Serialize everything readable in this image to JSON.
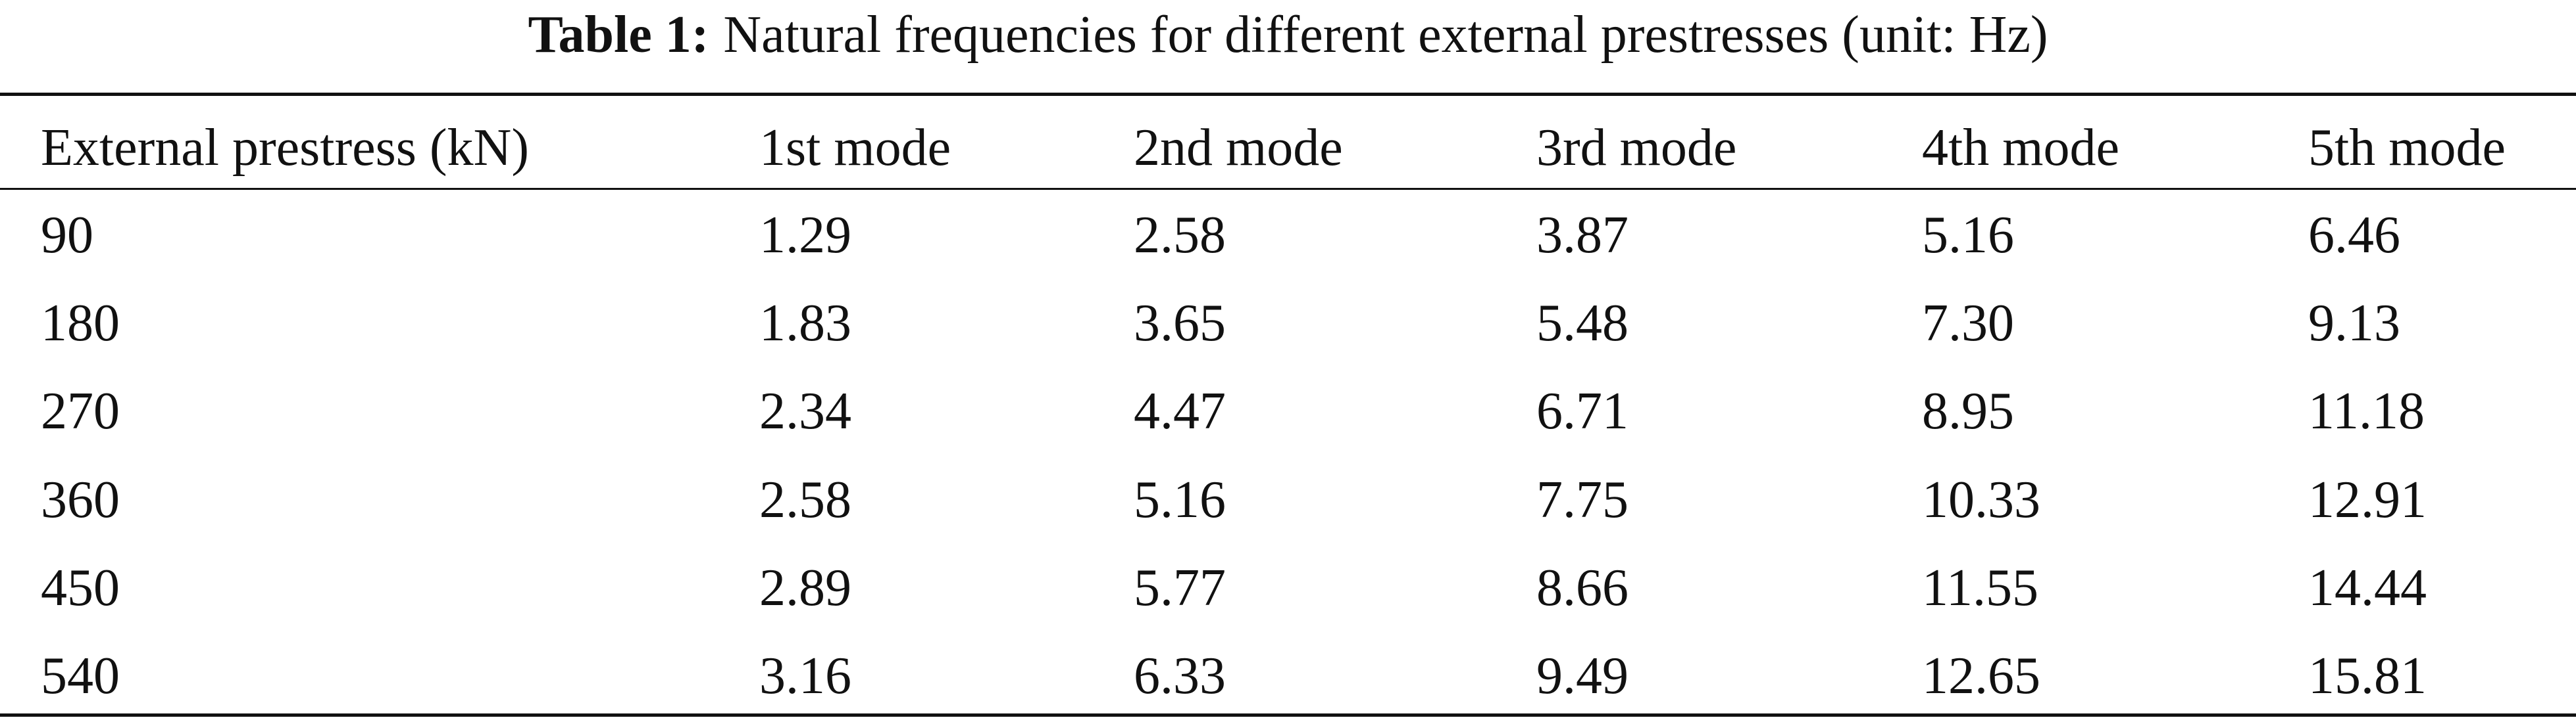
{
  "caption": {
    "label": "Table 1:",
    "text": "Natural frequencies for different external prestresses (unit: Hz)"
  },
  "table": {
    "header": [
      "External prestress (kN)",
      "1st mode",
      "2nd mode",
      "3rd mode",
      "4th mode",
      "5th mode"
    ],
    "rows": [
      [
        "90",
        "1.29",
        "2.58",
        "3.87",
        "5.16",
        "6.46"
      ],
      [
        "180",
        "1.83",
        "3.65",
        "5.48",
        "7.30",
        "9.13"
      ],
      [
        "270",
        "2.34",
        "4.47",
        "6.71",
        "8.95",
        "11.18"
      ],
      [
        "360",
        "2.58",
        "5.16",
        "7.75",
        "10.33",
        "12.91"
      ],
      [
        "450",
        "2.89",
        "5.77",
        "8.66",
        "11.55",
        "14.44"
      ],
      [
        "540",
        "3.16",
        "6.33",
        "9.49",
        "12.65",
        "15.81"
      ]
    ]
  }
}
